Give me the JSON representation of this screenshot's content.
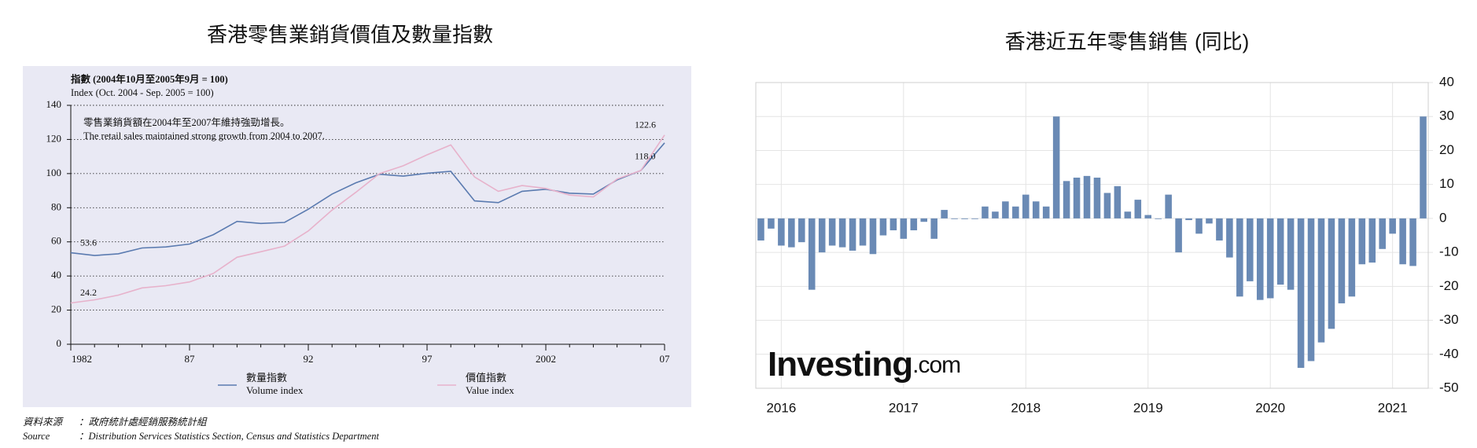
{
  "chart_data": [
    {
      "type": "line",
      "title": "香港零售業銷貨價值及數量指數",
      "y_label": [
        "指數 (2004年10月至2005年9月 = 100)",
        "Index (Oct. 2004 - Sep. 2005 = 100)"
      ],
      "annotation": [
        "零售業銷貨額在2004年至2007年維持強勁增長。",
        "The retail sales maintained strong growth from 2004 to 2007."
      ],
      "x": [
        1982,
        1983,
        1984,
        1985,
        1986,
        1987,
        1988,
        1989,
        1990,
        1991,
        1992,
        1993,
        1994,
        1995,
        1996,
        1997,
        1998,
        1999,
        2000,
        2001,
        2002,
        2003,
        2004,
        2005,
        2006,
        2007
      ],
      "xlim": [
        1982,
        2007
      ],
      "xticks": [
        1982,
        {
          "value": 1987,
          "label": "87"
        },
        {
          "value": 1992,
          "label": "92"
        },
        {
          "value": 1997,
          "label": "97"
        },
        2002,
        {
          "value": 2007,
          "label": "07"
        }
      ],
      "ylim": [
        0,
        140
      ],
      "yticks": [
        0,
        20,
        40,
        60,
        80,
        100,
        120,
        140
      ],
      "grid": true,
      "series": [
        {
          "name": "數量指數",
          "name_en": "Volume index",
          "color": "#5b7bb0",
          "values": [
            53.6,
            52,
            53,
            56.4,
            57,
            58.7,
            64.2,
            72,
            70.8,
            71.4,
            79.1,
            88,
            94.6,
            99.6,
            98.5,
            100.2,
            101.3,
            84,
            83,
            89.6,
            90.8,
            88.5,
            88,
            96.3,
            101.8,
            118.0
          ],
          "value_labels": [
            "53.6",
            null,
            null,
            null,
            null,
            null,
            null,
            null,
            null,
            null,
            null,
            null,
            null,
            null,
            null,
            null,
            null,
            null,
            null,
            null,
            null,
            null,
            null,
            null,
            null,
            "118.0"
          ]
        },
        {
          "name": "價值指數",
          "name_en": "Value index",
          "color": "#e7b2cb",
          "values": [
            24.2,
            26,
            28.8,
            33,
            34.3,
            36.5,
            41.5,
            51,
            54.2,
            57.5,
            66.4,
            78.6,
            89,
            100,
            104.6,
            111,
            116.8,
            98,
            89.6,
            93,
            91.3,
            87.4,
            86.3,
            96.8,
            101.8,
            122.6
          ],
          "value_labels": [
            "24.2",
            null,
            null,
            null,
            null,
            null,
            null,
            null,
            null,
            null,
            null,
            null,
            null,
            null,
            null,
            null,
            null,
            null,
            null,
            null,
            null,
            null,
            null,
            null,
            null,
            "122.6"
          ]
        }
      ],
      "source": {
        "label_zh": "資料來源",
        "text_zh": "：政府統計處經銷服務統計組",
        "label_en": "Source",
        "text_en": "：Distribution Services Statistics Section, Census and Statistics Department"
      }
    },
    {
      "type": "bar",
      "title": "香港近五年零售銷售 (同比)",
      "categories": [
        null,
        null,
        "2016",
        null,
        null,
        null,
        null,
        null,
        null,
        null,
        null,
        null,
        null,
        null,
        "2017",
        null,
        null,
        null,
        null,
        null,
        null,
        null,
        null,
        null,
        null,
        null,
        "2018",
        null,
        null,
        null,
        null,
        null,
        null,
        null,
        null,
        null,
        null,
        null,
        "2019",
        null,
        null,
        null,
        null,
        null,
        null,
        null,
        null,
        null,
        null,
        null,
        "2020",
        null,
        null,
        null,
        null,
        null,
        null,
        null,
        null,
        null,
        null,
        null,
        "2021",
        null,
        null,
        null
      ],
      "values": [
        -6.5,
        -3,
        -8,
        -8.5,
        -7,
        -21,
        -10,
        -8,
        -8.5,
        -9.5,
        -8,
        -10.5,
        -5,
        -3.5,
        -6,
        -3.5,
        -1,
        -6,
        2.5,
        0,
        -0.2,
        0,
        3.5,
        2,
        5,
        3.5,
        7,
        5,
        3.5,
        30,
        11,
        12,
        12.5,
        12,
        7.5,
        9.5,
        2,
        5.5,
        1,
        0,
        7,
        -10,
        -0.5,
        -4.5,
        -1.5,
        -6.5,
        -11.5,
        -23,
        -18.5,
        -24,
        -23.5,
        -19.5,
        -21,
        -44,
        -42,
        -36.5,
        -32.5,
        -25,
        -23,
        -13.5,
        -13,
        -9,
        -4.5,
        -13.5,
        -14,
        30
      ],
      "color": "#6a8ab5",
      "ylim": [
        -50,
        40
      ],
      "yticks": [
        -50,
        -40,
        -30,
        -20,
        -10,
        0,
        10,
        20,
        30,
        40
      ],
      "grid": true,
      "watermark": {
        "brand": "Investing",
        "suffix": ".com"
      }
    }
  ]
}
